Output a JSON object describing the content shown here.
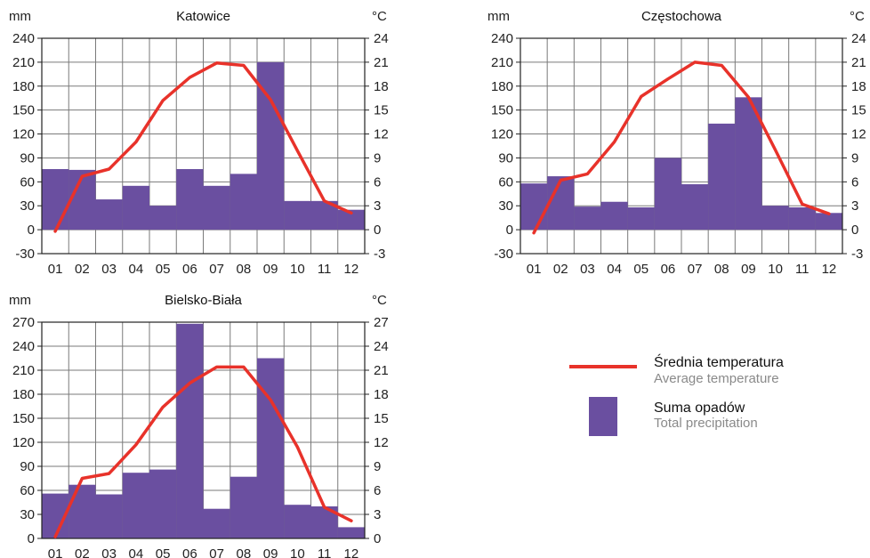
{
  "chart_data": [
    {
      "type": "bar",
      "title": "Katowice",
      "left_unit": "mm",
      "right_unit": "°C",
      "categories": [
        "01",
        "02",
        "03",
        "04",
        "05",
        "06",
        "07",
        "08",
        "09",
        "10",
        "11",
        "12"
      ],
      "ylim": [
        -30,
        240
      ],
      "y2lim": [
        -3,
        24
      ],
      "yticks": [
        -30,
        0,
        30,
        60,
        90,
        120,
        150,
        180,
        210,
        240
      ],
      "y2ticks": [
        -3,
        0,
        3,
        6,
        9,
        12,
        15,
        18,
        21,
        24
      ],
      "precipitation": [
        76,
        75,
        38,
        55,
        30,
        76,
        55,
        70,
        210,
        36,
        36,
        25
      ],
      "temperature": [
        -0.2,
        6.7,
        7.6,
        11.0,
        16.2,
        19.1,
        20.9,
        20.6,
        16.3,
        9.9,
        3.6,
        2.1
      ]
    },
    {
      "type": "bar",
      "title": "Częstochowa",
      "left_unit": "mm",
      "right_unit": "°C",
      "categories": [
        "01",
        "02",
        "03",
        "04",
        "05",
        "06",
        "07",
        "08",
        "09",
        "10",
        "11",
        "12"
      ],
      "ylim": [
        -30,
        240
      ],
      "y2lim": [
        -3,
        24
      ],
      "yticks": [
        -30,
        0,
        30,
        60,
        90,
        120,
        150,
        180,
        210,
        240
      ],
      "y2ticks": [
        -3,
        0,
        3,
        6,
        9,
        12,
        15,
        18,
        21,
        24
      ],
      "precipitation": [
        58,
        67,
        29,
        35,
        28,
        90,
        57,
        133,
        166,
        30,
        28,
        21
      ],
      "temperature": [
        -0.4,
        6.2,
        7.0,
        11.0,
        16.7,
        18.9,
        21.0,
        20.6,
        16.6,
        10.0,
        3.2,
        2.0
      ]
    },
    {
      "type": "bar",
      "title": "Bielsko-Biała",
      "left_unit": "mm",
      "right_unit": "°C",
      "categories": [
        "01",
        "02",
        "03",
        "04",
        "05",
        "06",
        "07",
        "08",
        "09",
        "10",
        "11",
        "12"
      ],
      "ylim": [
        0,
        270
      ],
      "y2lim": [
        0,
        27
      ],
      "yticks": [
        0,
        30,
        60,
        90,
        120,
        150,
        180,
        210,
        240,
        270
      ],
      "y2ticks": [
        0,
        3,
        6,
        9,
        12,
        15,
        18,
        21,
        24,
        27
      ],
      "precipitation": [
        56,
        67,
        55,
        82,
        86,
        268,
        37,
        77,
        225,
        42,
        40,
        14
      ],
      "temperature": [
        0.2,
        7.5,
        8.1,
        11.7,
        16.4,
        19.4,
        21.4,
        21.4,
        17.3,
        11.4,
        3.9,
        2.2
      ]
    }
  ],
  "legend": {
    "temperature_label": "Średnia temperatura",
    "temperature_sub": "Average temperature",
    "precipitation_label": "Suma opadów",
    "precipitation_sub": "Total precipitation"
  },
  "colors": {
    "bar": "#6a4fa0",
    "line": "#e8322a",
    "grid": "#7a7a7a",
    "axis": "#222222"
  }
}
